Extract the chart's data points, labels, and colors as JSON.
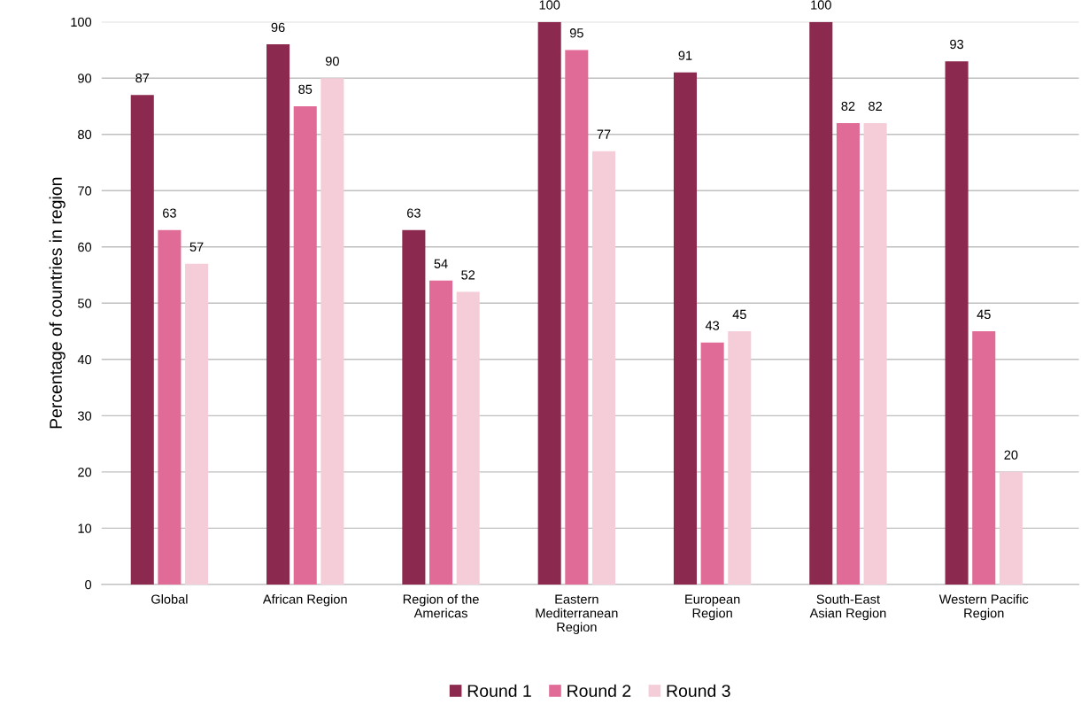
{
  "chart_data": {
    "type": "bar",
    "ylabel": "Percentage of countries in region",
    "categories": [
      "Global",
      "African Region",
      "Region of the\nAmericas",
      "Eastern\nMediterranean\nRegion",
      "European\nRegion",
      "South-East\nAsian Region",
      "Western Pacific\nRegion"
    ],
    "series": [
      {
        "name": "Round 1",
        "color": "#8b2a4e",
        "values": [
          87,
          96,
          63,
          100,
          91,
          100,
          93
        ]
      },
      {
        "name": "Round 2",
        "color": "#e06b97",
        "values": [
          63,
          85,
          54,
          95,
          43,
          82,
          45
        ]
      },
      {
        "name": "Round 3",
        "color": "#f5cdd9",
        "values": [
          57,
          90,
          52,
          77,
          45,
          82,
          20
        ]
      }
    ],
    "ylim": [
      0,
      100
    ],
    "yticks": [
      0,
      10,
      20,
      30,
      40,
      50,
      60,
      70,
      80,
      90,
      100
    ],
    "grid": "y",
    "legend": "bottom",
    "data_labels": true
  }
}
